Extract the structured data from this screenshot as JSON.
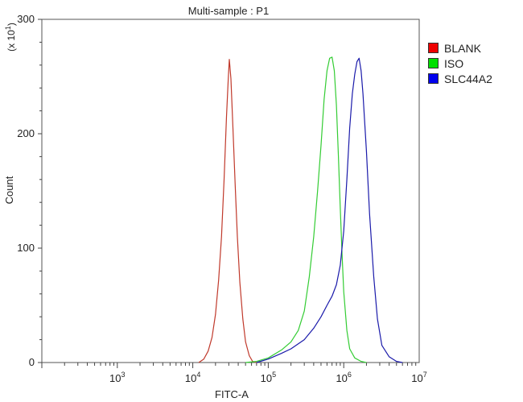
{
  "chart_data": {
    "type": "line",
    "title": "Multi-sample : P1",
    "xlabel": "FITC-A",
    "ylabel": "Count",
    "y_multiplier_label": "(x 10",
    "y_multiplier_exp": "1",
    "x_scale": "log",
    "xlim": [
      100,
      10000000
    ],
    "ylim": [
      0,
      300
    ],
    "x_tick_base": "10",
    "x_ticks": [
      {
        "value": 1000,
        "exp": "3"
      },
      {
        "value": 10000,
        "exp": "4"
      },
      {
        "value": 100000,
        "exp": "5"
      },
      {
        "value": 1000000,
        "exp": "6"
      },
      {
        "value": 10000000,
        "exp": "7"
      }
    ],
    "y_ticks": [
      0,
      100,
      200,
      300
    ],
    "legend_position": "right",
    "series": [
      {
        "name": "BLANK",
        "color": "#c0392b",
        "swatch": "#ee0000",
        "points": [
          [
            12000,
            0
          ],
          [
            14000,
            3
          ],
          [
            16000,
            10
          ],
          [
            18000,
            22
          ],
          [
            20000,
            42
          ],
          [
            22000,
            72
          ],
          [
            24000,
            110
          ],
          [
            26000,
            160
          ],
          [
            28000,
            215
          ],
          [
            29500,
            248
          ],
          [
            30500,
            265
          ],
          [
            32000,
            248
          ],
          [
            34000,
            205
          ],
          [
            36500,
            155
          ],
          [
            39000,
            110
          ],
          [
            42000,
            70
          ],
          [
            46000,
            38
          ],
          [
            50000,
            18
          ],
          [
            56000,
            6
          ],
          [
            62000,
            1
          ],
          [
            70000,
            0
          ]
        ]
      },
      {
        "name": "ISO",
        "color": "#33cc33",
        "swatch": "#00e000",
        "points": [
          [
            50000,
            0
          ],
          [
            70000,
            1
          ],
          [
            100000,
            4
          ],
          [
            150000,
            11
          ],
          [
            200000,
            18
          ],
          [
            250000,
            28
          ],
          [
            300000,
            45
          ],
          [
            350000,
            75
          ],
          [
            400000,
            110
          ],
          [
            450000,
            150
          ],
          [
            500000,
            190
          ],
          [
            550000,
            230
          ],
          [
            600000,
            255
          ],
          [
            650000,
            266
          ],
          [
            700000,
            267
          ],
          [
            750000,
            255
          ],
          [
            800000,
            225
          ],
          [
            850000,
            180
          ],
          [
            900000,
            135
          ],
          [
            950000,
            95
          ],
          [
            1000000,
            62
          ],
          [
            1100000,
            28
          ],
          [
            1200000,
            12
          ],
          [
            1400000,
            4
          ],
          [
            1700000,
            1
          ],
          [
            2000000,
            0
          ]
        ]
      },
      {
        "name": "SLC44A2",
        "color": "#1a1aaa",
        "swatch": "#0000ee",
        "points": [
          [
            70000,
            0
          ],
          [
            100000,
            3
          ],
          [
            150000,
            8
          ],
          [
            200000,
            12
          ],
          [
            300000,
            20
          ],
          [
            400000,
            30
          ],
          [
            500000,
            40
          ],
          [
            600000,
            50
          ],
          [
            700000,
            58
          ],
          [
            800000,
            68
          ],
          [
            900000,
            85
          ],
          [
            1000000,
            115
          ],
          [
            1100000,
            160
          ],
          [
            1200000,
            205
          ],
          [
            1300000,
            235
          ],
          [
            1400000,
            252
          ],
          [
            1500000,
            263
          ],
          [
            1600000,
            266
          ],
          [
            1700000,
            255
          ],
          [
            1800000,
            235
          ],
          [
            2000000,
            185
          ],
          [
            2200000,
            130
          ],
          [
            2500000,
            75
          ],
          [
            2800000,
            38
          ],
          [
            3200000,
            15
          ],
          [
            4000000,
            5
          ],
          [
            5000000,
            1
          ],
          [
            6000000,
            0
          ]
        ]
      }
    ]
  }
}
